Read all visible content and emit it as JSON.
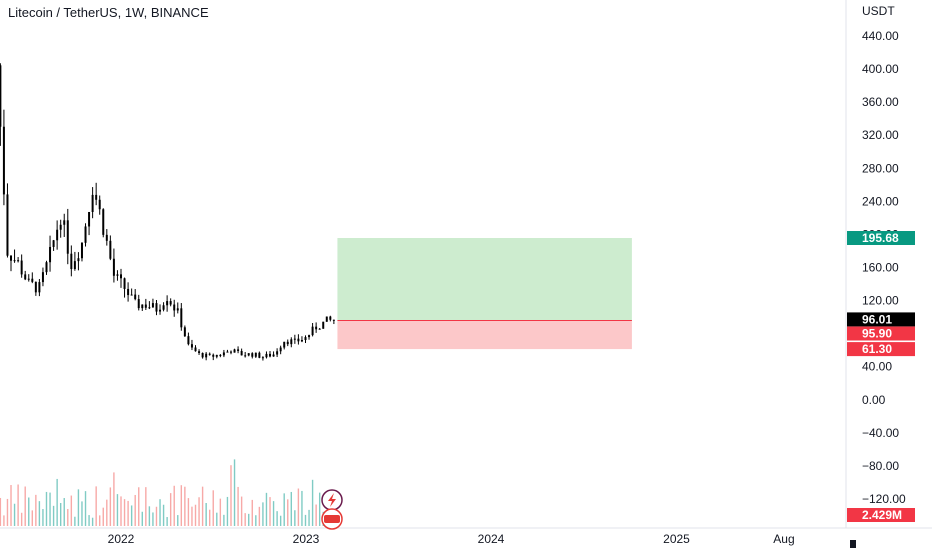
{
  "header": {
    "title": "Litecoin / TetherUS, 1W, BINANCE"
  },
  "chart_data": {
    "type": "candlestick",
    "currency": "USDT",
    "yticks": [
      "440.00",
      "400.00",
      "360.00",
      "320.00",
      "280.00",
      "240.00",
      "200.00",
      "160.00",
      "120.00",
      "80.00",
      "40.00",
      "0.00",
      "−40.00",
      "−80.00",
      "−120.00"
    ],
    "yvalues": [
      440,
      400,
      360,
      320,
      280,
      240,
      200,
      160,
      120,
      80,
      40,
      0,
      -40,
      -80,
      -120
    ],
    "xticks": [
      {
        "label": "2022",
        "date": "2022-01-01"
      },
      {
        "label": "2023",
        "date": "2023-01-01"
      },
      {
        "label": "2024",
        "date": "2024-01-01"
      },
      {
        "label": "2025",
        "date": "2025-01-01"
      },
      {
        "label": "Aug",
        "date": "2025-08-01"
      }
    ],
    "price_ylim": [
      -148,
      486
    ],
    "weekly_close": [
      [
        "2021-05-01",
        405
      ],
      [
        "2021-05-22",
        180
      ],
      [
        "2021-06-12",
        165
      ],
      [
        "2021-07-03",
        140
      ],
      [
        "2021-07-24",
        135
      ],
      [
        "2021-08-14",
        175
      ],
      [
        "2021-09-04",
        225
      ],
      [
        "2021-09-25",
        165
      ],
      [
        "2021-10-16",
        190
      ],
      [
        "2021-11-06",
        260
      ],
      [
        "2021-11-27",
        210
      ],
      [
        "2021-12-18",
        150
      ],
      [
        "2022-01-08",
        135
      ],
      [
        "2022-01-29",
        115
      ],
      [
        "2022-02-19",
        115
      ],
      [
        "2022-03-12",
        110
      ],
      [
        "2022-04-02",
        125
      ],
      [
        "2022-04-23",
        105
      ],
      [
        "2022-05-14",
        65
      ],
      [
        "2022-06-04",
        55
      ],
      [
        "2022-06-25",
        52
      ],
      [
        "2022-07-16",
        55
      ],
      [
        "2022-08-06",
        60
      ],
      [
        "2022-08-27",
        55
      ],
      [
        "2022-09-17",
        55
      ],
      [
        "2022-10-08",
        52
      ],
      [
        "2022-10-29",
        55
      ],
      [
        "2022-11-19",
        72
      ],
      [
        "2022-12-10",
        70
      ],
      [
        "2022-12-31",
        75
      ],
      [
        "2023-01-21",
        88
      ],
      [
        "2023-02-11",
        95
      ],
      [
        "2023-02-25",
        96
      ]
    ],
    "last_price": 96.01,
    "position": {
      "type": "long",
      "entry": 95.9,
      "target": 195.68,
      "stop": 61.3,
      "start": "2023-03-04",
      "end": "2024-10-05"
    },
    "price_labels": [
      {
        "label": "195.68",
        "value": 195.68,
        "color": "#089981"
      },
      {
        "label": "96.01",
        "value": 96.01,
        "color": "#000000"
      },
      {
        "label": "95.90",
        "value": 95.9,
        "color": "#f23645"
      },
      {
        "label": "61.30",
        "value": 61.3,
        "color": "#f23645"
      }
    ],
    "volume_label": "2.429M",
    "volume_label_color": "#f23645",
    "colors": {
      "target_zone": "#cdeccf",
      "stop_zone": "#fcc8c9",
      "entry_line": "#f23645",
      "up_volume": "#80cbc4",
      "down_volume": "#f7a9a7",
      "candle": "#000000"
    }
  }
}
